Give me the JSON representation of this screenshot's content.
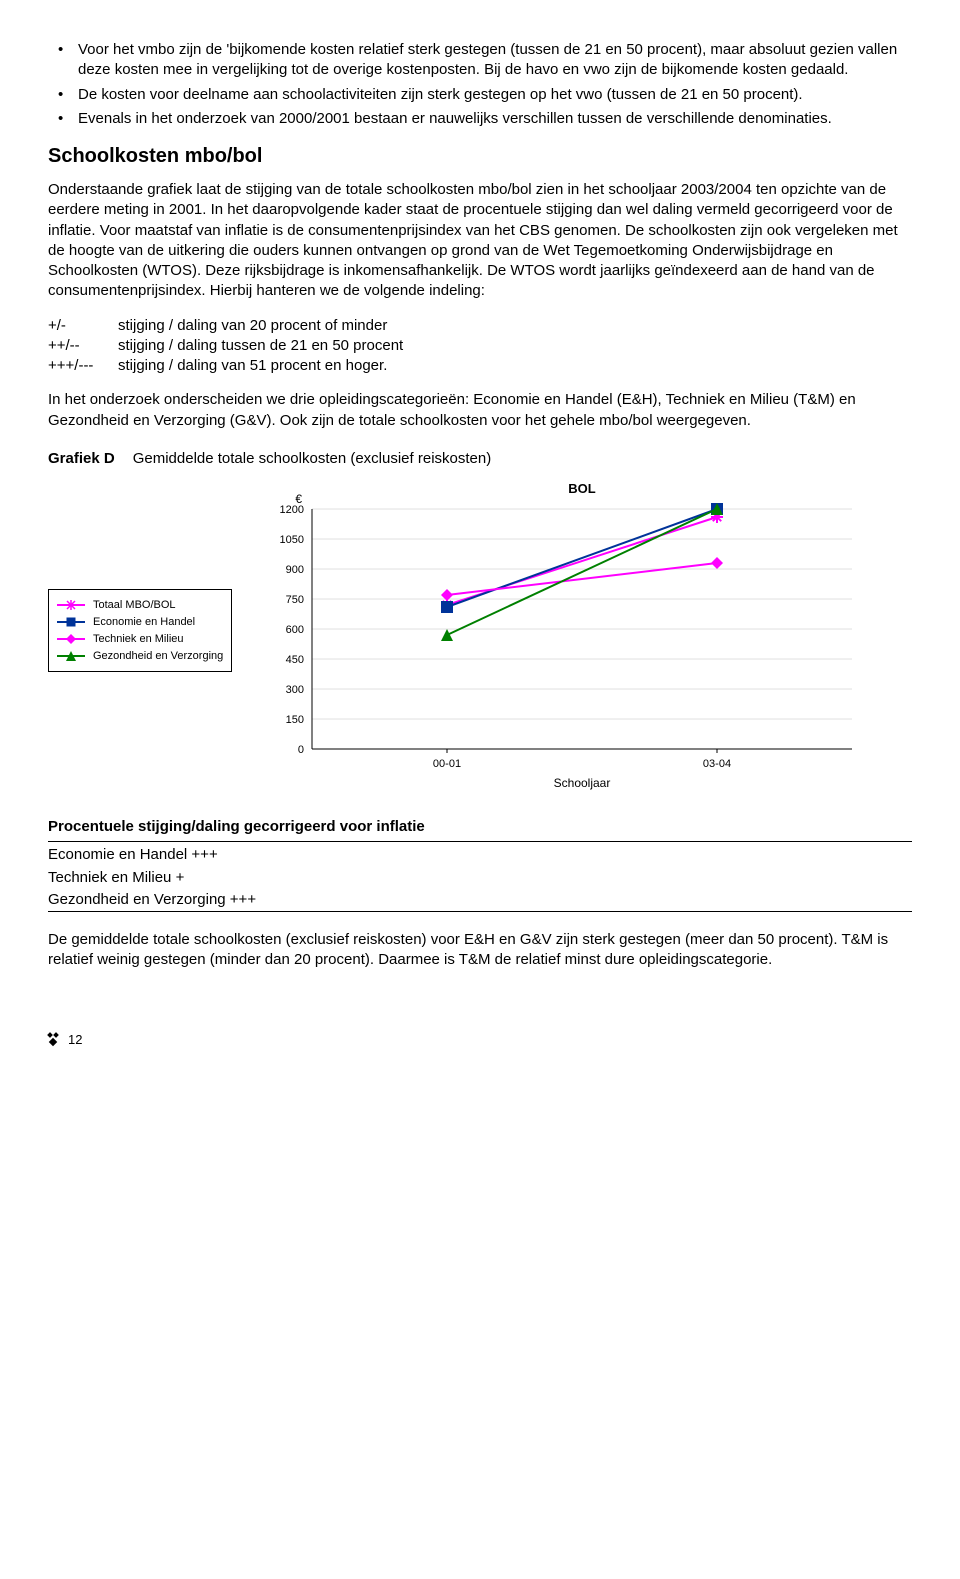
{
  "bullets": [
    "Voor het vmbo zijn de 'bijkomende kosten relatief sterk gestegen (tussen de 21 en 50 procent), maar absoluut gezien vallen deze kosten mee in vergelijking tot de overige kostenposten. Bij de havo en vwo zijn de bijkomende kosten gedaald.",
    "De kosten voor deelname aan schoolactiviteiten zijn sterk gestegen op het vwo (tussen de 21 en 50 procent).",
    "Evenals in het onderzoek van 2000/2001 bestaan er nauwelijks verschillen tussen de verschillende denominaties."
  ],
  "heading2": "Schoolkosten mbo/bol",
  "para1": "Onderstaande grafiek laat de stijging van de totale schoolkosten mbo/bol zien in het schooljaar 2003/2004 ten opzichte van de eerdere meting in 2001. In het daaropvolgende kader staat de procentuele stijging dan wel daling vermeld gecorrigeerd voor de inflatie. Voor maatstaf van inflatie is de consumentenprijsindex van het CBS genomen. De schoolkosten zijn ook vergeleken met de hoogte van de uitkering die ouders kunnen ontvangen op grond van de Wet Tegemoetkoming Onderwijsbijdrage en Schoolkosten (WTOS). Deze rijksbijdrage is inkomensafhankelijk. De WTOS wordt jaarlijks geïndexeerd aan de hand van de consumentenprijsindex. Hierbij hanteren we de volgende indeling:",
  "indicators": [
    {
      "code": "+/-",
      "text": "stijging / daling van 20 procent of minder"
    },
    {
      "code": "++/--",
      "text": "stijging / daling tussen de 21 en 50 procent"
    },
    {
      "code": "+++/---",
      "text": "stijging / daling van 51 procent en hoger."
    }
  ],
  "para2": "In het onderzoek onderscheiden we drie opleidingscategorieën: Economie en Handel (E&H), Techniek en Milieu (T&M) en Gezondheid en Verzorging (G&V). Ook zijn de totale schoolkosten voor het gehele mbo/bol weergegeven.",
  "chart": {
    "label": "Grafiek D",
    "title": "Gemiddelde totale schoolkosten (exclusief reiskosten)",
    "chart_title": "BOL",
    "y_unit": "€",
    "x_label": "Schooljaar",
    "xcats": [
      "00-01",
      "03-04"
    ],
    "ylim": [
      0,
      1200
    ],
    "ystep": 150,
    "yticks": [
      0,
      150,
      300,
      450,
      600,
      750,
      900,
      1050,
      1200
    ],
    "series": [
      {
        "name": "Totaal MBO/BOL",
        "color": "#ff00ff",
        "marker": "star",
        "values": [
          720,
          1160
        ]
      },
      {
        "name": "Economie en Handel",
        "color": "#003399",
        "marker": "square",
        "values": [
          710,
          1200
        ]
      },
      {
        "name": "Techniek en Milieu",
        "color": "#ff00ff",
        "marker": "diamond",
        "values": [
          770,
          930
        ]
      },
      {
        "name": "Gezondheid en Verzorging",
        "color": "#008000",
        "marker": "triangle",
        "values": [
          570,
          1200
        ]
      }
    ],
    "tick_fontsize": 11,
    "bg": "#ffffff",
    "grid_color": "#c0c0c0"
  },
  "table": {
    "heading": "Procentuele stijging/daling gecorrigeerd voor inflatie",
    "rows": [
      "Economie en Handel  +++",
      "Techniek en Milieu  +",
      "Gezondheid en Verzorging  +++"
    ]
  },
  "para3": "De gemiddelde totale schoolkosten (exclusief reiskosten) voor E&H en G&V zijn sterk gestegen (meer dan 50 procent). T&M is relatief weinig gestegen (minder dan 20 procent). Daarmee is T&M de relatief minst dure opleidingscategorie.",
  "page_number": "12"
}
